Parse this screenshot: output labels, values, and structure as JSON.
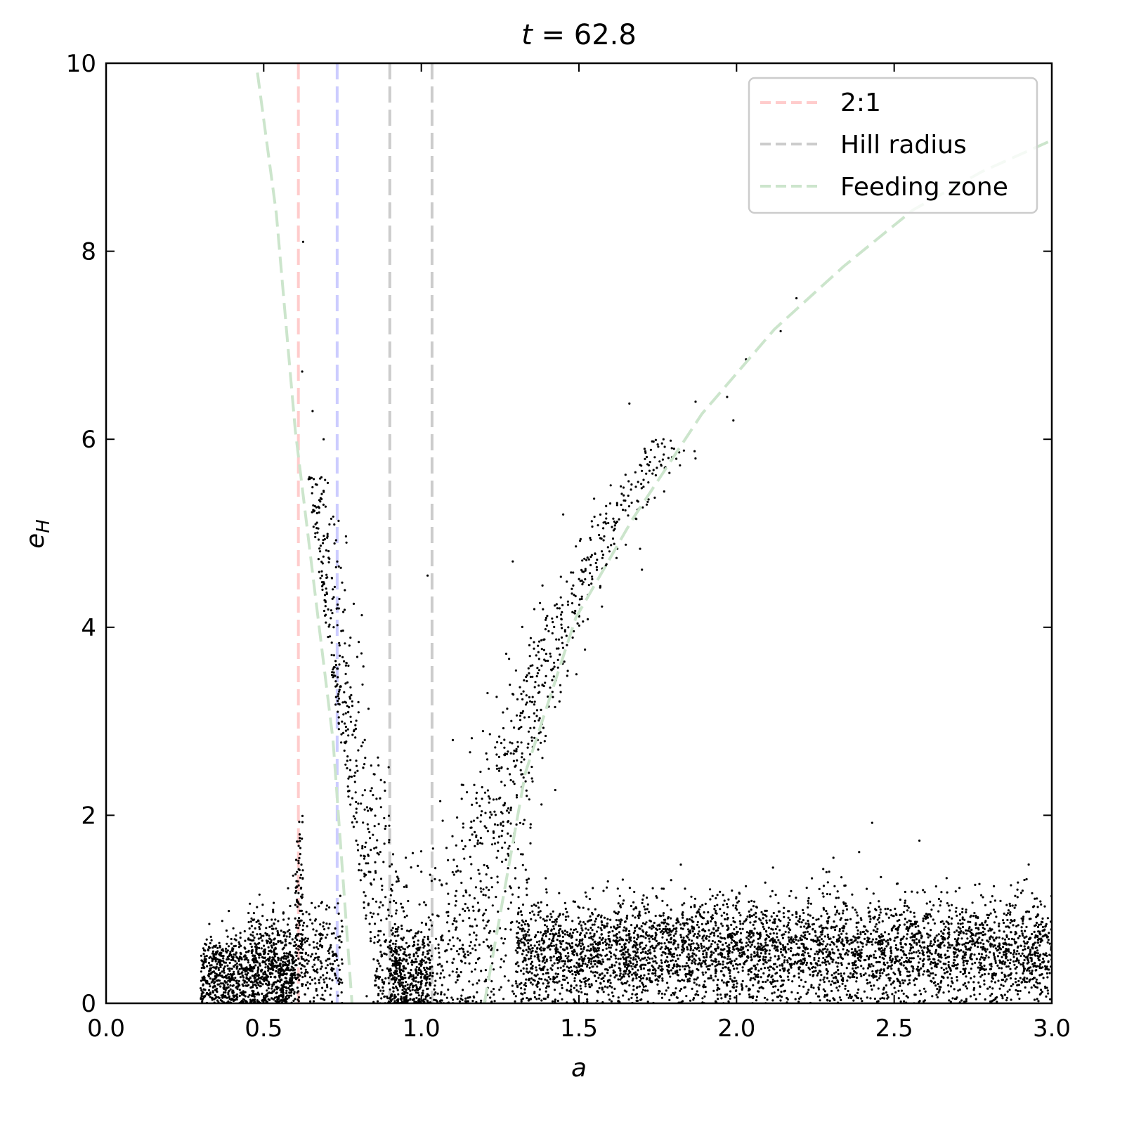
{
  "chart_data": {
    "type": "scatter",
    "title": "t = 62.8",
    "title_parts": {
      "var": "t",
      "eq": " = ",
      "value": "62.8"
    },
    "xlabel": "a",
    "ylabel": "e_H",
    "ylabel_parts": {
      "base": "e",
      "sub": "H"
    },
    "xlim": [
      0.0,
      3.0
    ],
    "ylim": [
      0,
      10
    ],
    "xticks": [
      0.0,
      0.5,
      1.0,
      1.5,
      2.0,
      2.5,
      3.0
    ],
    "xtick_labels": [
      "0.0",
      "0.5",
      "1.0",
      "1.5",
      "2.0",
      "2.5",
      "3.0"
    ],
    "yticks": [
      0,
      2,
      4,
      6,
      8,
      10
    ],
    "ytick_labels": [
      "0",
      "2",
      "4",
      "6",
      "8",
      "10"
    ],
    "grid": false,
    "legend_position": "upper right",
    "legend": [
      {
        "label": "2:1",
        "color": "#ffcccc",
        "style": "dashed"
      },
      {
        "label": "Hill radius",
        "color": "#cccccc",
        "style": "dashed"
      },
      {
        "label": "Feeding zone",
        "color": "#cce5cc",
        "style": "dashed"
      }
    ],
    "vertical_lines": [
      {
        "x": 0.61,
        "color": "#ffcccc",
        "label": "2:1"
      },
      {
        "x": 0.733,
        "color": "#ccccff",
        "label": ""
      },
      {
        "x": 0.9,
        "color": "#cccccc",
        "label": "Hill radius"
      },
      {
        "x": 1.034,
        "color": "#cccccc",
        "label": ""
      }
    ],
    "feeding_zone_curves": [
      {
        "side": "inner",
        "points": [
          [
            0.48,
            9.9
          ],
          [
            0.54,
            8.4
          ],
          [
            0.6,
            6.1
          ],
          [
            0.665,
            4.3
          ],
          [
            0.72,
            2.8
          ],
          [
            0.78,
            0.0
          ]
        ]
      },
      {
        "side": "outer",
        "points": [
          [
            1.2,
            0.0
          ],
          [
            1.33,
            2.45
          ],
          [
            1.49,
            4.1
          ],
          [
            1.67,
            5.15
          ],
          [
            1.89,
            6.27
          ],
          [
            2.12,
            7.17
          ],
          [
            2.34,
            7.84
          ],
          [
            2.56,
            8.44
          ],
          [
            2.78,
            8.85
          ],
          [
            3.0,
            9.18
          ]
        ]
      }
    ],
    "scatter_color": "#000000",
    "scatter_clusters": [
      {
        "desc": "inner disk",
        "x_range": [
          0.3,
          0.6
        ],
        "y_center": 0.3,
        "y_spread": 0.22,
        "n": 900
      },
      {
        "desc": "inner disk upper",
        "x_range": [
          0.45,
          0.75
        ],
        "y_center": 0.5,
        "y_spread": 0.3,
        "n": 450
      },
      {
        "desc": "2:1 resonance spike",
        "x_range": [
          0.6,
          0.625
        ],
        "y_center": 1.0,
        "y_spread": 0.45,
        "n": 90
      },
      {
        "desc": "inner scattered arm",
        "x_range": [
          0.62,
          0.9
        ],
        "y_center": 0,
        "y_spread": 0.35,
        "n": 600,
        "arm": "inner"
      },
      {
        "desc": "gap cluster",
        "x_range": [
          0.9,
          1.03
        ],
        "y_center": 0.35,
        "y_spread": 0.22,
        "n": 330
      },
      {
        "desc": "outer scattered arm",
        "x_range": [
          1.1,
          1.9
        ],
        "y_center": 0,
        "y_spread": 0.35,
        "n": 900,
        "arm": "outer"
      },
      {
        "desc": "outer disk",
        "x_range": [
          1.3,
          3.0
        ],
        "y_center": 0.55,
        "y_spread": 0.28,
        "n": 4200
      }
    ],
    "outlier_points": [
      [
        0.625,
        8.1
      ],
      [
        0.622,
        6.72
      ],
      [
        0.655,
        6.3
      ],
      [
        0.69,
        6.0
      ],
      [
        1.02,
        4.55
      ],
      [
        1.29,
        4.7
      ],
      [
        1.45,
        5.2
      ],
      [
        1.66,
        6.38
      ],
      [
        1.99,
        6.2
      ],
      [
        2.03,
        6.85
      ],
      [
        2.14,
        7.15
      ],
      [
        2.19,
        7.5
      ],
      [
        1.97,
        6.45
      ],
      [
        1.87,
        6.4
      ],
      [
        1.06,
        2.15
      ],
      [
        1.0,
        1.4
      ],
      [
        1.1,
        2.8
      ],
      [
        1.16,
        2.82
      ],
      [
        1.21,
        3.3
      ],
      [
        2.43,
        1.92
      ],
      [
        2.58,
        1.73
      ],
      [
        2.92,
        1.32
      ]
    ]
  }
}
